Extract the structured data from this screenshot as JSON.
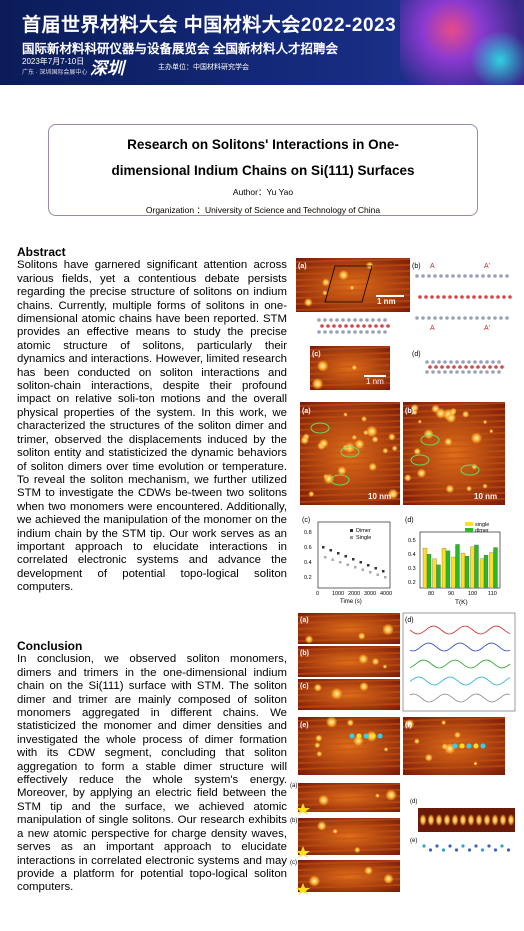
{
  "header": {
    "title_cn": "首届世界材料大会 中国材料大会2022-2023",
    "subtitle_cn": "国际新材料科研仪器与设备展览会 全国新材料人才招聘会",
    "date": "2023年7月7-10日",
    "venue": "广东 · 深圳国际会展中心",
    "city": "深圳",
    "organizer": "主办单位：中国材料研究学会"
  },
  "poster": {
    "title_line1": "Research on Solitons' Interactions in One-",
    "title_line2": "dimensional Indium Chains on Si(111) Surfaces",
    "author": "Author：Yu Yao",
    "organization": "Organization ：University of Science and Technology of China"
  },
  "abstract": {
    "heading": "Abstract",
    "text": "Solitons have garnered significant attention across various fields, yet a contentious debate persists regarding the precise structure of solitons on indium chains. Currently, multiple forms of solitons in one-dimensional atomic chains have been reported. STM provides an effective means to study the precise atomic structure of solitons, particularly their dynamics and interactions. However, limited research has been conducted on soliton interactions and soliton-chain interactions, despite their profound impact on relative soli-ton motions and the overall physical properties of the system. In this work, we characterized the structures of the soliton dimer and trimer, observed the displacements induced by the soliton entity and statisticized the dynamic behaviors of soliton dimers over time evolution or temperature. To reveal the soliton mechanism, we further utilized STM to investigate the CDWs be-tween two solitons when two monomers were encountered. Additionally, we achieved the manipulation of the monomer on the indium chain by the STM tip. Our work serves as an important approach to elucidate interactions in correlated electronic systems and advance the development of potential topo-logical soliton computers."
  },
  "conclusion": {
    "heading": "Conclusion",
    "text": "In conclusion, we observed soliton monomers, dimers and trimers in the one-dimensional indium chain on the Si(111) surface with STM. The soliton dimer and trimer are mainly composed of soliton monomers aggregated in different chains. We statisticized the monomer and dimer densities and investigated the whole process of dimer formation with its CDW segment, concluding that soliton aggregation to form a stable dimer structure will effectively reduce the whole system's energy. Moreover, by applying an electric field between the STM tip and the surface, we achieved atomic manipulation of single solitons. Our research exhibits a new atomic perspective for charge density waves, serves as an important approach to elucidate interactions in correlated electronic systems and may provide a platform for potential topo-logical soliton computers."
  },
  "figures": {
    "fig1": {
      "labels": [
        "(a)",
        "(b)",
        "(c)",
        "(d)"
      ],
      "scale_a": "1 nm",
      "scale_c": "1 nm",
      "sites": [
        "A",
        "A'",
        "A",
        "A'"
      ]
    },
    "fig2": {
      "labels": [
        "(a)",
        "(b)",
        "(c)",
        "(d)"
      ],
      "scale_a": "10 nm",
      "scale_b": "10 nm",
      "chart_c": {
        "legend": [
          "Dimer",
          "Single"
        ],
        "yticks": [
          "0.8",
          "0.6",
          "0.4",
          "0.2"
        ],
        "xticks": [
          "0",
          "1000",
          "2000",
          "3000",
          "4000"
        ],
        "xlabel": "Time (s)"
      },
      "chart_d": {
        "legend": [
          "single",
          "dimer"
        ],
        "yticks": [
          "0.5",
          "0.4",
          "0.3",
          "0.2"
        ],
        "xticks": [
          "80",
          "90",
          "100",
          "110"
        ],
        "xlabel": "T(K)"
      }
    },
    "fig3": {
      "labels": [
        "(a)",
        "(b)",
        "(c)",
        "(d)",
        "(e)",
        "(f)"
      ]
    },
    "fig4": {
      "labels": [
        "(a)",
        "(b)",
        "(c)",
        "(d)",
        "(e)"
      ]
    }
  }
}
